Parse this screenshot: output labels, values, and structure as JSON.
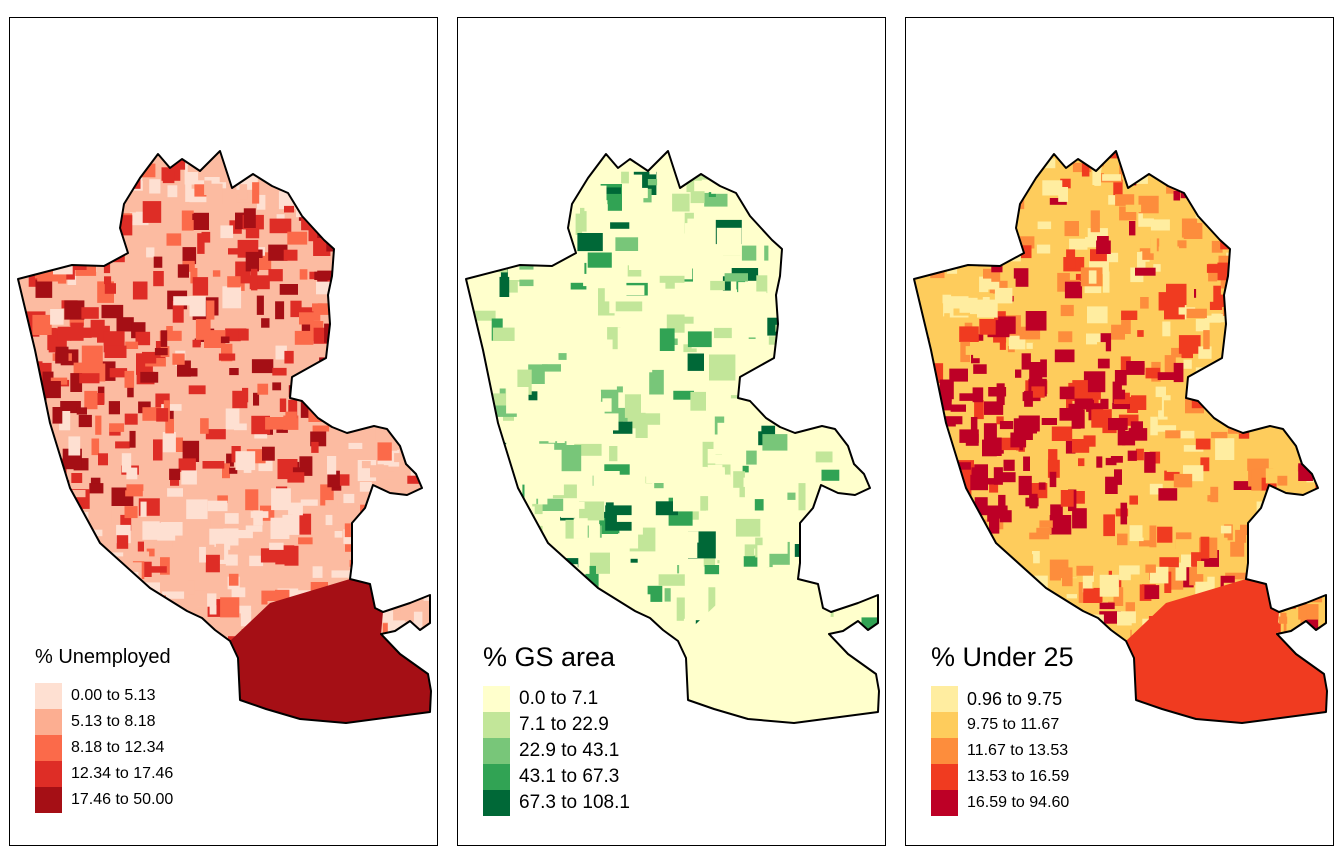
{
  "panels": [
    {
      "title": "% Unemployed",
      "base_color": "#fcbba1",
      "map_colors": [
        "#fee0d2",
        "#fcbba1",
        "#fb6a4a",
        "#de2d26",
        "#a50f15"
      ],
      "legend": [
        {
          "label": "0.00 to 5.13",
          "color": "#fee0d2"
        },
        {
          "label": "5.13 to 8.18",
          "color": "#fcae91"
        },
        {
          "label": "8.18 to 12.34",
          "color": "#fb6a4a"
        },
        {
          "label": "12.34 to 17.46",
          "color": "#de2d26"
        },
        {
          "label": "17.46 to 50.00",
          "color": "#a50f15"
        }
      ]
    },
    {
      "title": "% GS area",
      "base_color": "#ffffcc",
      "map_colors": [
        "#ffffcc",
        "#c2e699",
        "#78c679",
        "#31a354",
        "#006837"
      ],
      "legend": [
        {
          "label": "0.0 to 7.1",
          "color": "#ffffcc"
        },
        {
          "label": "7.1 to 22.9",
          "color": "#c2e699"
        },
        {
          "label": "22.9 to 43.1",
          "color": "#78c679"
        },
        {
          "label": "43.1 to 67.3",
          "color": "#31a354"
        },
        {
          "label": "67.3 to 108.1",
          "color": "#006837"
        }
      ]
    },
    {
      "title": "% Under 25",
      "base_color": "#fecc5c",
      "map_colors": [
        "#ffeda0",
        "#fecc5c",
        "#fd8d3c",
        "#f03b20",
        "#bd0026"
      ],
      "legend": [
        {
          "label": "0.96 to 9.75",
          "color": "#ffeda0"
        },
        {
          "label": "9.75 to 11.67",
          "color": "#fecc5c"
        },
        {
          "label": "11.67 to 13.53",
          "color": "#fd8d3c"
        },
        {
          "label": "13.53 to 16.59",
          "color": "#f03b20"
        },
        {
          "label": "16.59 to 94.60",
          "color": "#bd0026"
        }
      ]
    }
  ]
}
